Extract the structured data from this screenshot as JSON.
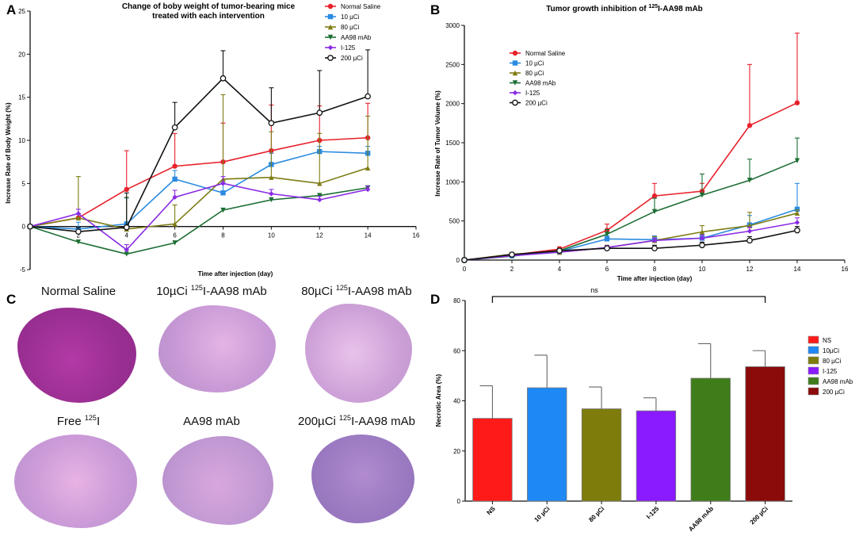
{
  "panels": {
    "A": "A",
    "B": "B",
    "C": "C",
    "D": "D"
  },
  "chart_data": [
    {
      "id": "A",
      "type": "line",
      "title_lines": [
        "Change of boby weight of tumor-bearing mice",
        "treated with each intervention"
      ],
      "xlabel": "Time after injection (day)",
      "ylabel": "Increase Rate of Body Weight (%)",
      "xlim": [
        0,
        16
      ],
      "ylim": [
        -5,
        25
      ],
      "xticks": [
        2,
        4,
        6,
        8,
        10,
        12,
        14,
        16
      ],
      "yticks": [
        -5,
        0,
        5,
        10,
        15,
        20,
        25
      ],
      "x": [
        0,
        2,
        4,
        6,
        8,
        10,
        12,
        14
      ],
      "series": [
        {
          "name": "Normal Saline",
          "color": "#e8212b",
          "marker": "circle-filled",
          "values": [
            0,
            1.0,
            4.3,
            7.0,
            7.5,
            8.8,
            10.0,
            10.3
          ],
          "err": [
            0,
            0.5,
            4.5,
            3.8,
            4.5,
            5.3,
            4.0,
            4.0
          ]
        },
        {
          "name": "10 µCi",
          "color": "#2a8be0",
          "marker": "square",
          "values": [
            0,
            -0.3,
            0.3,
            5.5,
            3.9,
            7.2,
            8.7,
            8.5
          ],
          "err": [
            0,
            0.8,
            3.0,
            1.0,
            1.2,
            1.3,
            0.6,
            0.8
          ]
        },
        {
          "name": "80 µCi",
          "color": "#7e7c14",
          "marker": "triangle-up",
          "values": [
            0,
            1.0,
            -0.3,
            0.3,
            5.5,
            5.7,
            5.0,
            6.8
          ],
          "err": [
            0,
            4.8,
            3.7,
            2.2,
            9.8,
            5.3,
            5.8,
            6.0
          ]
        },
        {
          "name": "AA98 mAb",
          "color": "#1d6e34",
          "marker": "triangle-down",
          "values": [
            0,
            -1.8,
            -3.2,
            -1.9,
            1.9,
            3.1,
            3.6,
            4.5
          ],
          "err": [
            0,
            0,
            0,
            0,
            0,
            0,
            0,
            0
          ]
        },
        {
          "name": "I-125",
          "color": "#8a2be2",
          "marker": "diamond",
          "values": [
            0,
            1.5,
            -2.7,
            3.4,
            5.0,
            3.8,
            3.1,
            4.3
          ],
          "err": [
            0,
            0.5,
            0.6,
            0.8,
            0.8,
            0.5,
            0.4,
            0.4
          ]
        },
        {
          "name": "200 µCi",
          "color": "#111111",
          "marker": "circle-open",
          "values": [
            0,
            -0.6,
            -0.1,
            11.5,
            17.2,
            12.0,
            13.2,
            15.1
          ],
          "err": [
            0,
            0.5,
            4.0,
            2.9,
            3.2,
            4.1,
            4.9,
            5.4
          ]
        }
      ]
    },
    {
      "id": "B",
      "type": "line",
      "title_prefix": "Tumor growth inhibition of ",
      "title_sup": "125",
      "title_suffix": "I-AA98 mAb",
      "xlabel": "Time after injection (day)",
      "ylabel": "Increase Rate of Tumor Volume (%)",
      "xlim": [
        0,
        16
      ],
      "ylim": [
        0,
        3000
      ],
      "xticks": [
        0,
        2,
        4,
        6,
        8,
        10,
        12,
        14,
        16
      ],
      "yticks": [
        0,
        500,
        1000,
        1500,
        2000,
        2500,
        3000
      ],
      "x": [
        0,
        2,
        4,
        6,
        8,
        10,
        12,
        14
      ],
      "series": [
        {
          "name": "Normal Saline",
          "color": "#e8212b",
          "marker": "circle-filled",
          "values": [
            0,
            65,
            140,
            380,
            820,
            880,
            1720,
            2010
          ],
          "err": [
            0,
            25,
            30,
            80,
            160,
            100,
            780,
            890
          ]
        },
        {
          "name": "10 µCi",
          "color": "#2a8be0",
          "marker": "square",
          "values": [
            0,
            55,
            110,
            270,
            260,
            280,
            450,
            650
          ],
          "err": [
            0,
            20,
            25,
            40,
            50,
            50,
            120,
            330
          ]
        },
        {
          "name": "80 µCi",
          "color": "#7e7c14",
          "marker": "triangle-up",
          "values": [
            0,
            75,
            100,
            160,
            250,
            360,
            440,
            600
          ],
          "err": [
            0,
            25,
            25,
            30,
            50,
            80,
            170,
            40
          ]
        },
        {
          "name": "AA98 mAb",
          "color": "#1d6e34",
          "marker": "triangle-down",
          "values": [
            0,
            50,
            120,
            330,
            620,
            830,
            1020,
            1270
          ],
          "err": [
            0,
            20,
            30,
            60,
            170,
            270,
            270,
            290
          ]
        },
        {
          "name": "I-125",
          "color": "#8a2be2",
          "marker": "diamond",
          "values": [
            0,
            55,
            100,
            160,
            250,
            280,
            370,
            480
          ],
          "err": [
            0,
            20,
            20,
            25,
            30,
            40,
            50,
            60
          ]
        },
        {
          "name": "200 µCi",
          "color": "#111111",
          "marker": "circle-open",
          "values": [
            0,
            70,
            120,
            150,
            150,
            190,
            250,
            380
          ],
          "err": [
            0,
            20,
            25,
            20,
            40,
            40,
            50,
            50
          ]
        }
      ]
    },
    {
      "id": "D",
      "type": "bar",
      "ylabel": "Necrotic Area (%)",
      "ylim": [
        0,
        80
      ],
      "yticks": [
        0,
        20,
        40,
        60,
        80
      ],
      "categories": [
        "NS",
        "10 µCi",
        "80 µCi",
        "I-125",
        "AA98 mAb",
        "200 µCi"
      ],
      "values": [
        33,
        45.2,
        36.8,
        36,
        49,
        53.6
      ],
      "err": [
        13,
        13,
        8.7,
        5.2,
        13.8,
        6.4
      ],
      "colors": [
        "#ff1a1a",
        "#1e88f5",
        "#7e7c0a",
        "#8a1aff",
        "#3e7d1a",
        "#8b0a0a"
      ],
      "legend": [
        "NS",
        "10µCi",
        "80 µCi",
        "I-125",
        "AA98 mAb",
        "200 µCi"
      ],
      "significance": "ns"
    }
  ],
  "histology": [
    {
      "label": "Normal Saline",
      "sup": "",
      "suffix": ""
    },
    {
      "label": "10µCi ",
      "sup": "125",
      "suffix": "I-AA98 mAb"
    },
    {
      "label": "80µCi ",
      "sup": "125",
      "suffix": "I-AA98 mAb"
    },
    {
      "label": "Free ",
      "sup": "125",
      "suffix": "I"
    },
    {
      "label": "AA98 mAb",
      "sup": "",
      "suffix": ""
    },
    {
      "label": "200µCi ",
      "sup": "125",
      "suffix": "I-AA98 mAb"
    }
  ]
}
